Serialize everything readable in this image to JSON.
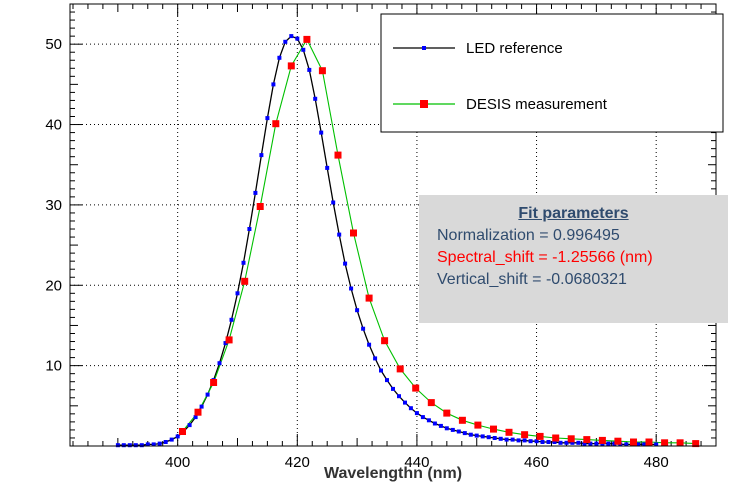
{
  "chart_data": {
    "type": "line",
    "title": "",
    "xlabel": "Wavelengthn (nm)",
    "ylabel": "",
    "xlim": [
      382,
      490
    ],
    "ylim": [
      0,
      55
    ],
    "x_ticks": [
      400,
      420,
      440,
      460,
      480
    ],
    "y_ticks": [
      10,
      20,
      30,
      40,
      50
    ],
    "grid": true,
    "legend_position": "top-right",
    "series": [
      {
        "name": "LED reference",
        "color": "#0000ff",
        "line_color": "#000000",
        "marker": "small-square",
        "x": [
          390,
          391,
          392,
          393,
          394,
          395,
          396,
          397,
          398,
          399,
          400,
          401,
          402,
          403,
          404,
          405,
          406,
          407,
          408,
          409,
          410,
          411,
          412,
          413,
          414,
          415,
          416,
          417,
          418,
          419,
          420,
          421,
          422,
          423,
          424,
          425,
          426,
          427,
          428,
          429,
          430,
          431,
          432,
          433,
          434,
          435,
          436,
          437,
          438,
          439,
          440,
          441,
          442,
          443,
          444,
          445,
          446,
          447,
          448,
          449,
          450,
          451,
          452,
          453,
          454,
          455,
          456,
          457,
          458,
          459,
          460,
          461,
          462,
          463,
          464,
          465,
          466,
          467,
          468,
          469,
          470,
          471,
          472,
          473,
          474,
          475,
          476,
          477,
          478,
          479,
          480
        ],
        "y": [
          0.1,
          0.1,
          0.1,
          0.1,
          0.1,
          0.2,
          0.2,
          0.3,
          0.5,
          0.8,
          1.2,
          1.8,
          2.6,
          3.6,
          4.9,
          6.4,
          8.2,
          10.3,
          12.8,
          15.7,
          19.0,
          22.8,
          27.0,
          31.5,
          36.2,
          40.8,
          45.0,
          48.3,
          50.3,
          51.0,
          50.7,
          49.3,
          46.8,
          43.2,
          39.0,
          34.6,
          30.3,
          26.3,
          22.7,
          19.6,
          16.9,
          14.6,
          12.6,
          10.9,
          9.4,
          8.2,
          7.1,
          6.2,
          5.4,
          4.7,
          4.1,
          3.6,
          3.2,
          2.8,
          2.5,
          2.2,
          2.0,
          1.8,
          1.6,
          1.4,
          1.3,
          1.2,
          1.1,
          1.0,
          0.9,
          0.8,
          0.8,
          0.7,
          0.7,
          0.6,
          0.6,
          0.5,
          0.5,
          0.5,
          0.4,
          0.4,
          0.4,
          0.4,
          0.3,
          0.3,
          0.3,
          0.3,
          0.3,
          0.3,
          0.2,
          0.2,
          0.2,
          0.2,
          0.2,
          0.2,
          0.2
        ]
      },
      {
        "name": "DESIS measurement",
        "color": "#ff0000",
        "line_color": "#00c000",
        "marker": "square",
        "x": [
          400.8,
          403.4,
          406.0,
          408.6,
          411.2,
          413.8,
          416.4,
          419.0,
          421.6,
          424.2,
          426.8,
          429.4,
          432.0,
          434.6,
          437.2,
          439.8,
          442.4,
          445.0,
          447.6,
          450.2,
          452.8,
          455.4,
          458.0,
          460.6,
          463.2,
          465.8,
          468.4,
          471.0,
          473.6,
          476.2,
          478.8,
          481.4,
          484.0,
          486.6
        ],
        "y": [
          1.8,
          4.2,
          7.9,
          13.2,
          20.5,
          29.8,
          40.1,
          47.3,
          50.6,
          46.7,
          36.2,
          26.5,
          18.4,
          13.1,
          9.6,
          7.2,
          5.4,
          4.1,
          3.2,
          2.6,
          2.1,
          1.7,
          1.4,
          1.2,
          1.0,
          0.9,
          0.8,
          0.7,
          0.6,
          0.5,
          0.5,
          0.4,
          0.4,
          0.3
        ]
      }
    ]
  },
  "fit": {
    "title": "Fit parameters",
    "normalization": "Normalization =  0.996495",
    "spectral_shift": "Spectral_shift = -1.25566 (nm)",
    "vertical_shift": "Vertical_shift = -0.0680321"
  }
}
